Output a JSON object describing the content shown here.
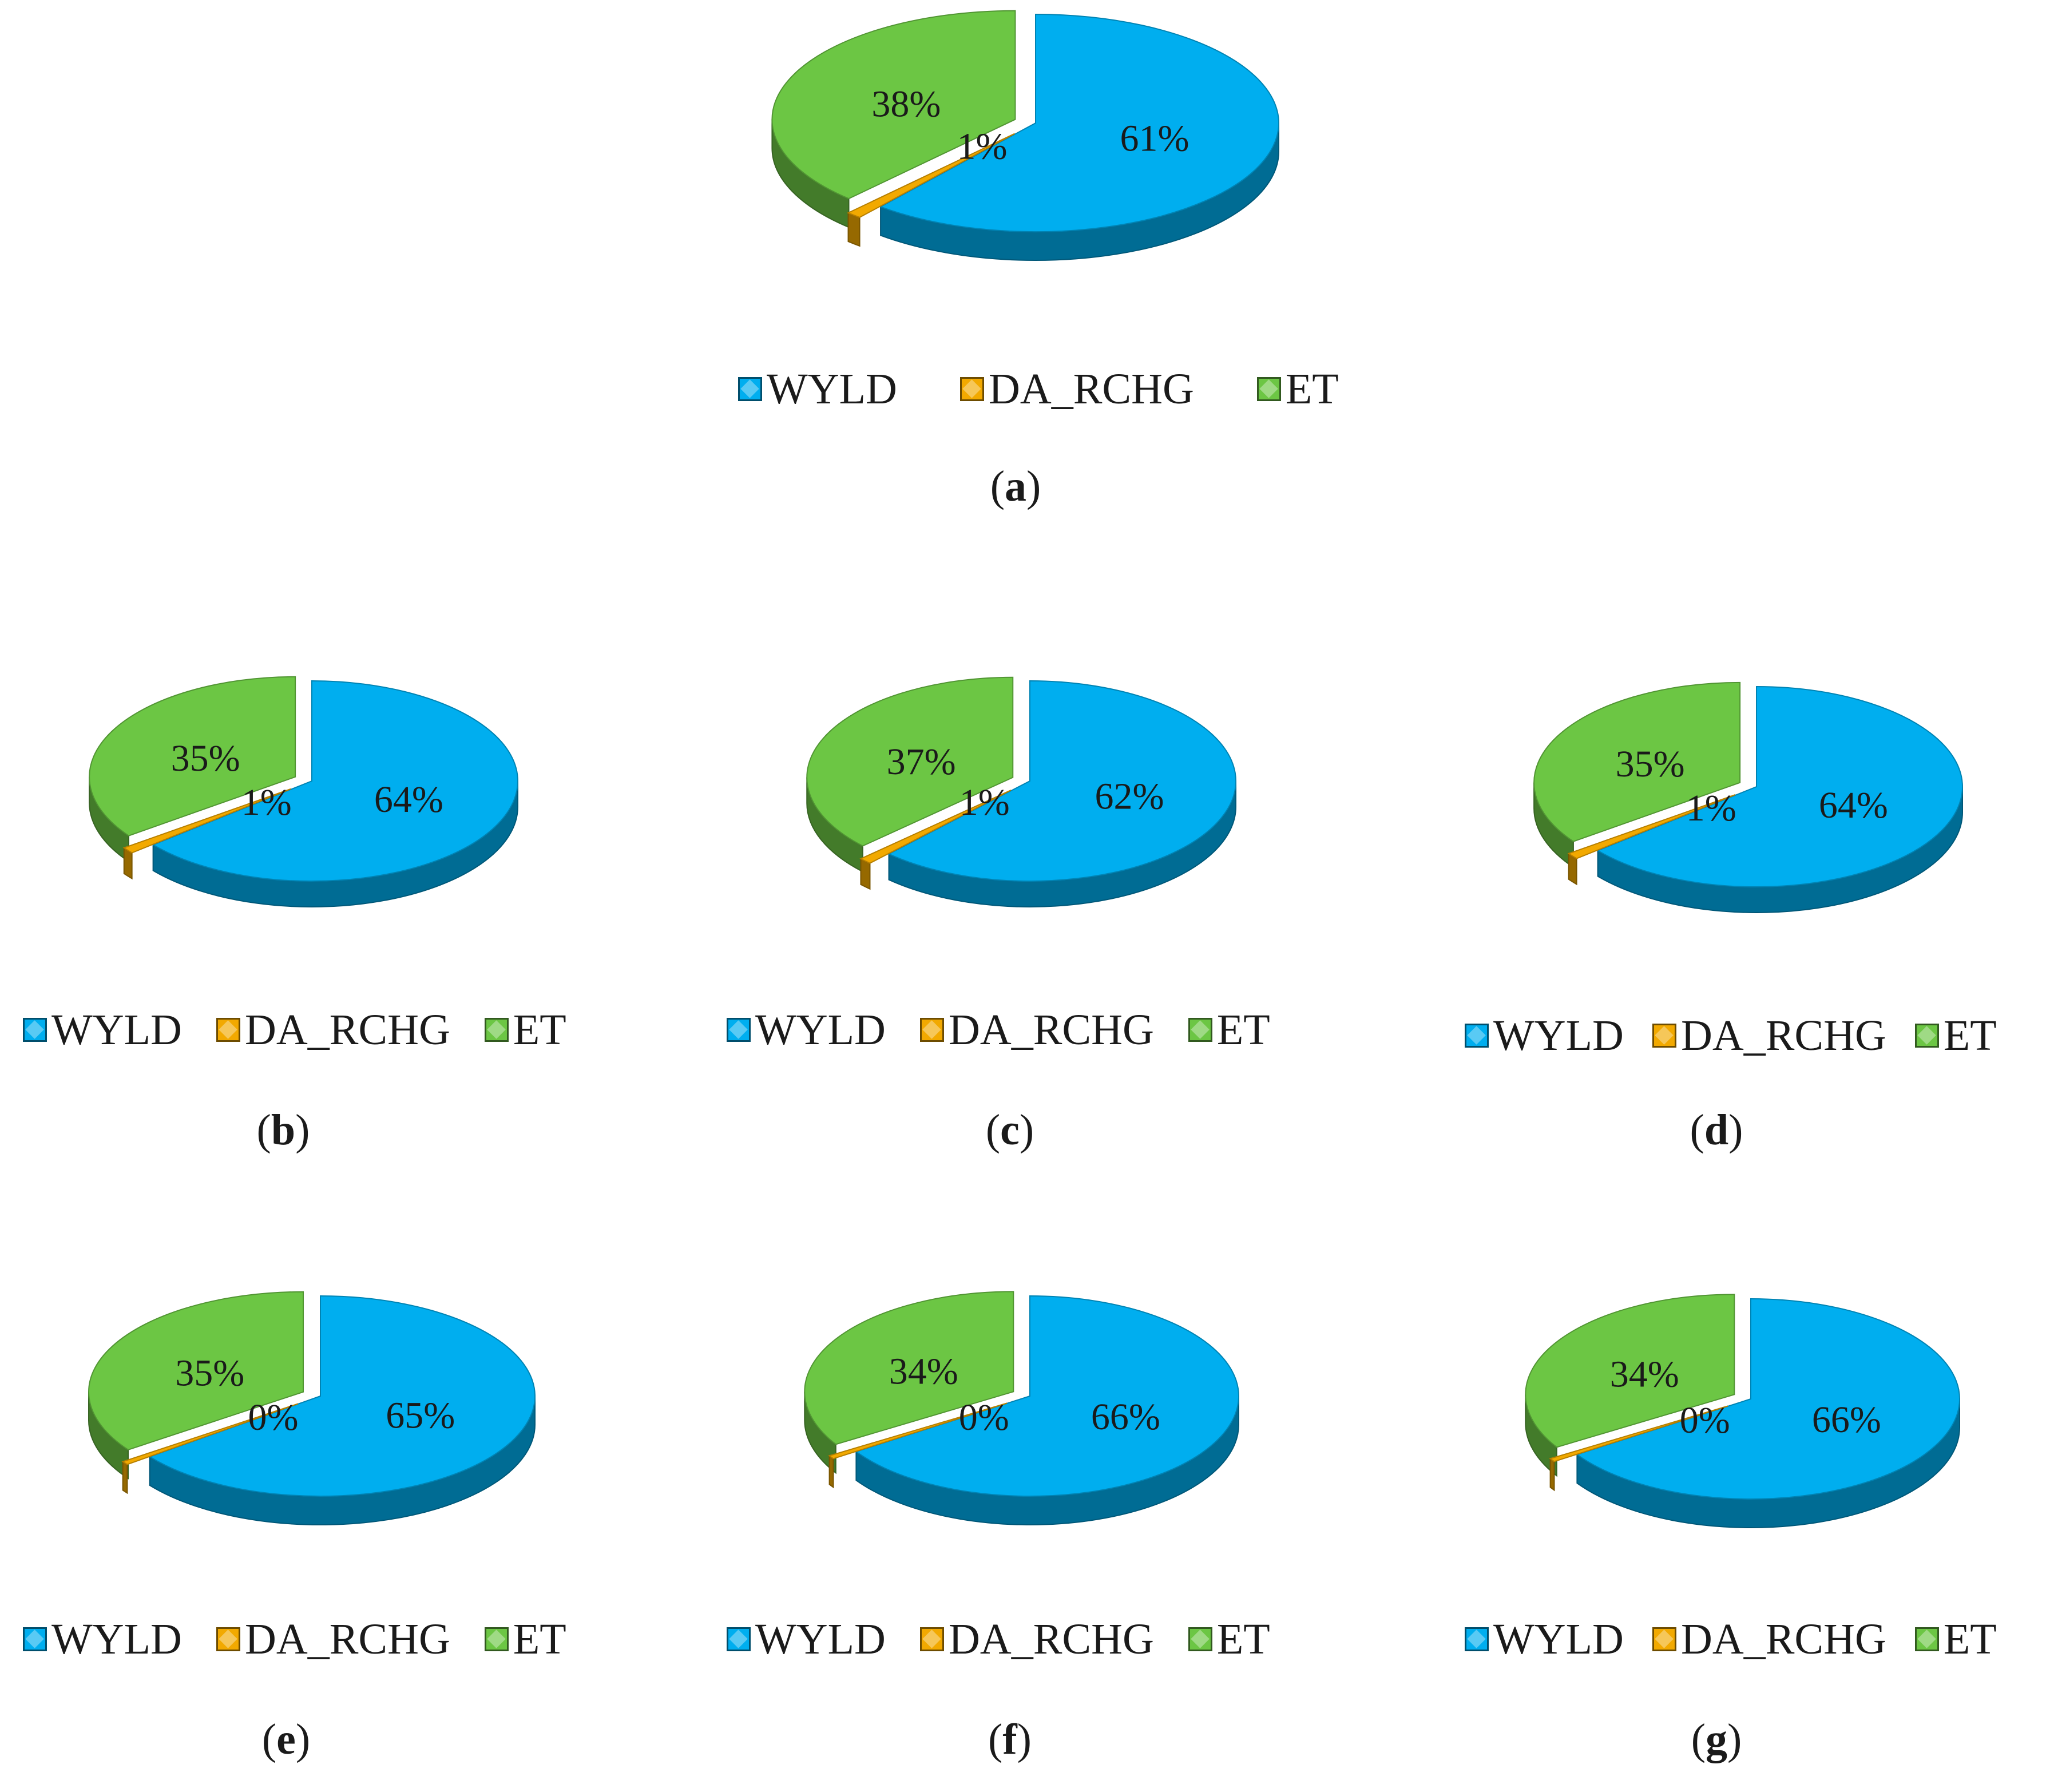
{
  "colors": {
    "WYLD": "#00AEEF",
    "DA_RCHG": "#F2A900",
    "ET": "#6CC644"
  },
  "chart_data": [
    {
      "type": "pie",
      "panel": "a",
      "caption_letter": "a",
      "categories": [
        "WYLD",
        "DA_RCHG",
        "ET"
      ],
      "values": [
        61,
        1,
        38
      ],
      "labels": [
        "61%",
        "1%",
        "38%"
      ],
      "legend": [
        "WYLD",
        "DA_RCHG",
        "ET"
      ],
      "style": "3d-exploded",
      "legend_position": "bottom"
    },
    {
      "type": "pie",
      "panel": "b",
      "caption_letter": "b",
      "categories": [
        "WYLD",
        "DA_RCHG",
        "ET"
      ],
      "values": [
        64,
        1,
        35
      ],
      "labels": [
        "64%",
        "1%",
        "35%"
      ],
      "legend": [
        "WYLD",
        "DA_RCHG",
        "ET"
      ],
      "style": "3d-exploded",
      "legend_position": "bottom"
    },
    {
      "type": "pie",
      "panel": "c",
      "caption_letter": "c",
      "categories": [
        "WYLD",
        "DA_RCHG",
        "ET"
      ],
      "values": [
        62,
        1,
        37
      ],
      "labels": [
        "62%",
        "1%",
        "37%"
      ],
      "legend": [
        "WYLD",
        "DA_RCHG",
        "ET"
      ],
      "style": "3d-exploded",
      "legend_position": "bottom"
    },
    {
      "type": "pie",
      "panel": "d",
      "caption_letter": "d",
      "categories": [
        "WYLD",
        "DA_RCHG",
        "ET"
      ],
      "values": [
        64,
        1,
        35
      ],
      "labels": [
        "64%",
        "1%",
        "35%"
      ],
      "legend": [
        "WYLD",
        "DA_RCHG",
        "ET"
      ],
      "style": "3d-exploded",
      "legend_position": "bottom"
    },
    {
      "type": "pie",
      "panel": "e",
      "caption_letter": "e",
      "categories": [
        "WYLD",
        "DA_RCHG",
        "ET"
      ],
      "values": [
        65,
        0,
        35
      ],
      "labels": [
        "65%",
        "0%",
        "35%"
      ],
      "legend": [
        "WYLD",
        "DA_RCHG",
        "ET"
      ],
      "style": "3d-exploded",
      "legend_position": "bottom"
    },
    {
      "type": "pie",
      "panel": "f",
      "caption_letter": "f",
      "categories": [
        "WYLD",
        "DA_RCHG",
        "ET"
      ],
      "values": [
        66,
        0,
        34
      ],
      "labels": [
        "66%",
        "0%",
        "34%"
      ],
      "legend": [
        "WYLD",
        "DA_RCHG",
        "ET"
      ],
      "style": "3d-exploded",
      "legend_position": "bottom"
    },
    {
      "type": "pie",
      "panel": "g",
      "caption_letter": "g",
      "categories": [
        "WYLD",
        "DA_RCHG",
        "ET"
      ],
      "values": [
        66,
        0,
        34
      ],
      "labels": [
        "66%",
        "0%",
        "34%"
      ],
      "legend": [
        "WYLD",
        "DA_RCHG",
        "ET"
      ],
      "style": "3d-exploded",
      "legend_position": "bottom"
    }
  ]
}
